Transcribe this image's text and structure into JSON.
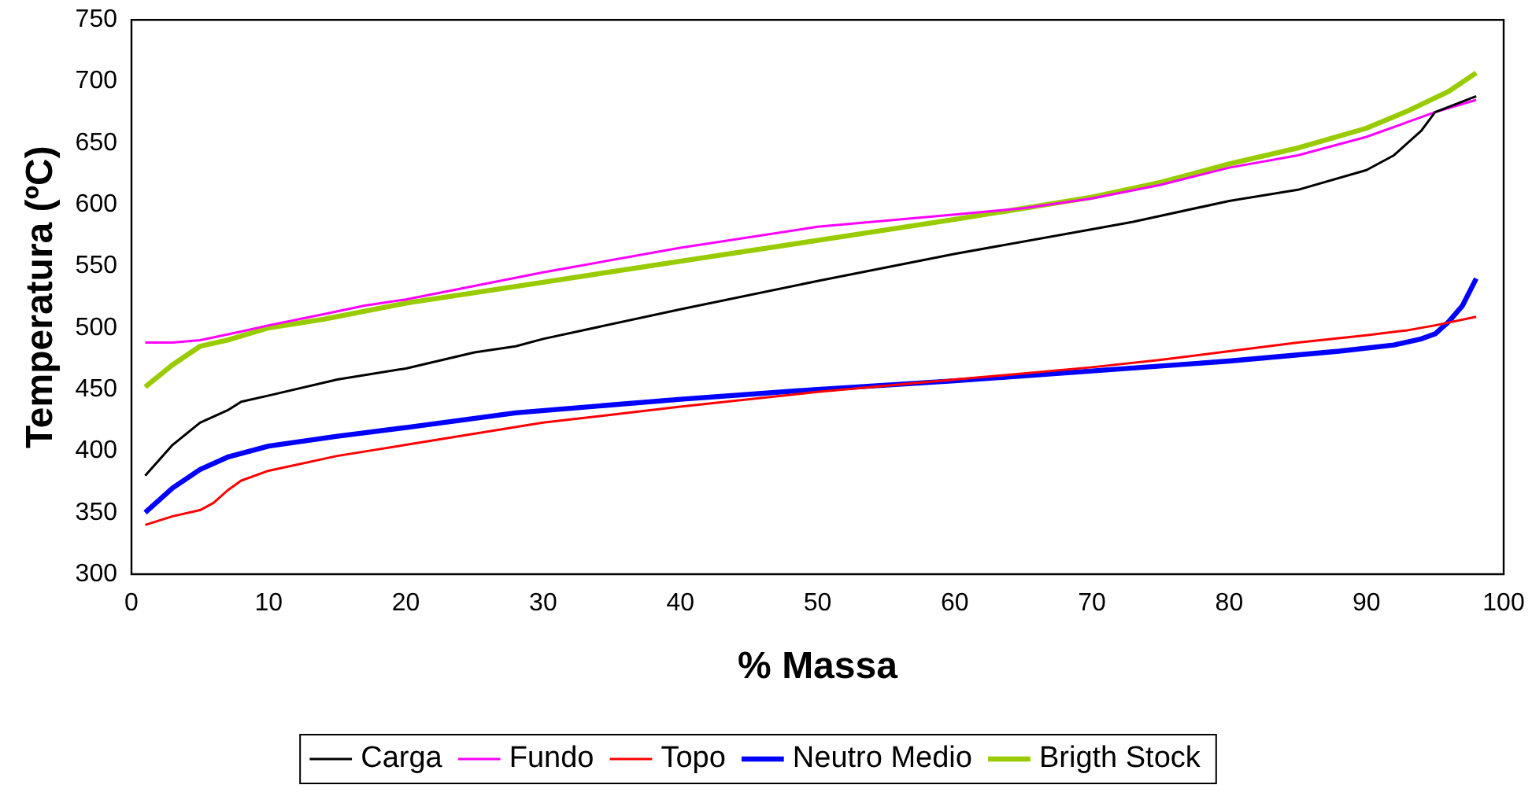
{
  "chart_data": {
    "type": "line",
    "xlabel": "% Massa",
    "ylabel": "Temperatura (ºC)",
    "xlim": [
      0,
      100
    ],
    "xticks": [
      0,
      10,
      20,
      30,
      40,
      50,
      60,
      70,
      80,
      90,
      100
    ],
    "ylim": [
      300,
      750
    ],
    "yticks": [
      300,
      350,
      400,
      450,
      500,
      550,
      600,
      650,
      700,
      750
    ],
    "grid": false,
    "legend": "bottom",
    "marker": "none",
    "line_style": "solid",
    "series": [
      {
        "name": "Carga",
        "color": "#000000",
        "x": [
          1,
          3,
          5,
          7,
          8,
          10,
          15,
          20,
          25,
          28,
          30,
          40,
          50,
          60,
          70,
          73,
          80,
          85,
          90,
          92,
          94,
          95,
          98
        ],
        "values": [
          380,
          405,
          423,
          433,
          440,
          445,
          458,
          467,
          480,
          485,
          491,
          515,
          538,
          560,
          580,
          586,
          603,
          612,
          628,
          640,
          660,
          675,
          688
        ]
      },
      {
        "name": "Fundo",
        "color": "#ff00ff",
        "x": [
          1,
          3,
          5,
          8,
          10,
          14,
          17,
          20,
          30,
          40,
          50,
          60,
          65,
          70,
          75,
          80,
          85,
          90,
          93,
          95,
          98
        ],
        "values": [
          488,
          488,
          490,
          497,
          502,
          511,
          518,
          523,
          545,
          565,
          582,
          592,
          597,
          605,
          616,
          630,
          640,
          655,
          667,
          675,
          685
        ]
      },
      {
        "name": "Topo",
        "color": "#ff0000",
        "x": [
          1,
          3,
          5,
          6,
          7,
          8,
          10,
          15,
          20,
          30,
          40,
          50,
          60,
          70,
          75,
          80,
          85,
          90,
          93,
          95,
          98
        ],
        "values": [
          340,
          347,
          352,
          358,
          368,
          376,
          384,
          396,
          405,
          423,
          436,
          448,
          458,
          468,
          474,
          481,
          488,
          494,
          498,
          502,
          509
        ]
      },
      {
        "name": "Neutro Medio",
        "color": "#0000ff",
        "x": [
          1,
          3,
          5,
          7,
          10,
          15,
          20,
          28,
          40,
          50,
          60,
          70,
          80,
          88,
          92,
          94,
          95,
          96,
          97,
          98
        ],
        "values": [
          350,
          370,
          385,
          395,
          404,
          412,
          419,
          431,
          442,
          450,
          457,
          465,
          473,
          481,
          486,
          491,
          495,
          505,
          518,
          540
        ]
      },
      {
        "name": "Brigth Stock",
        "color": "#99cc00",
        "x": [
          1,
          3,
          5,
          7,
          10,
          14,
          20,
          30,
          40,
          50,
          60,
          70,
          75,
          80,
          85,
          90,
          93,
          96,
          98
        ],
        "values": [
          452,
          470,
          485,
          490,
          500,
          507,
          520,
          537,
          554,
          571,
          588,
          606,
          618,
          633,
          646,
          662,
          676,
          692,
          707
        ]
      }
    ]
  }
}
